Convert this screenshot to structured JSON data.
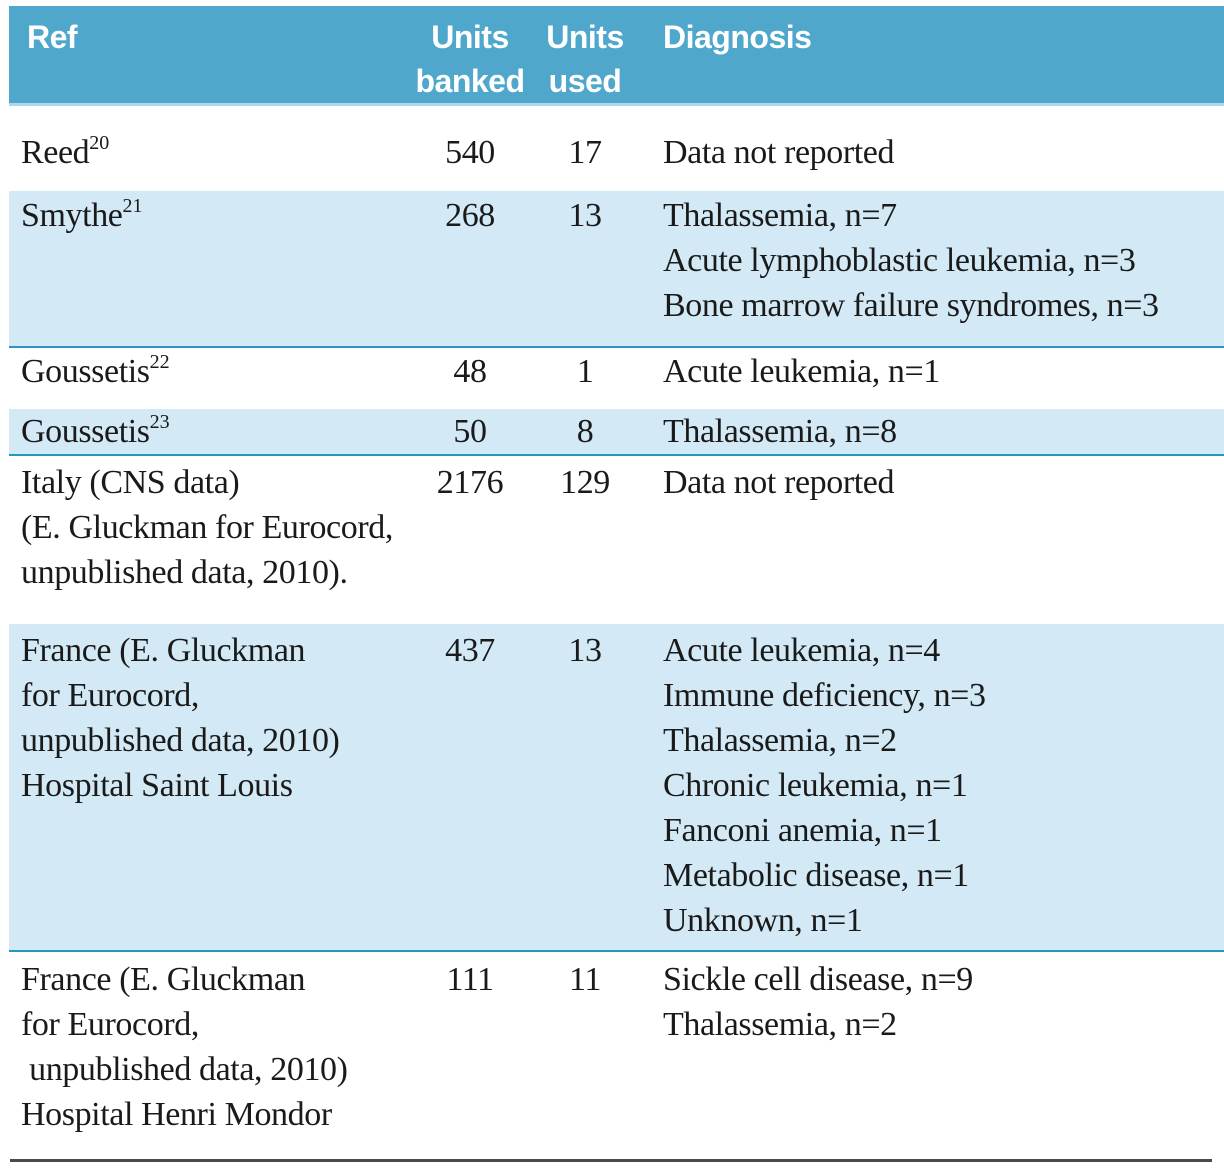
{
  "table": {
    "header": {
      "ref": "Ref",
      "units_banked_line1": "Units",
      "units_banked_line2": "banked",
      "units_used_line1": "Units",
      "units_used_line2": "used",
      "diagnosis": "Diagnosis"
    },
    "rows": [
      {
        "ref_name": "Reed",
        "ref_sup": "20",
        "units_banked": "540",
        "units_used": "17",
        "diagnosis": [
          "Data not reported"
        ]
      },
      {
        "ref_name": "Smythe",
        "ref_sup": "21",
        "units_banked": "268",
        "units_used": "13",
        "diagnosis": [
          "Thalassemia, n=7",
          "Acute lymphoblastic leukemia, n=3",
          "Bone marrow failure syndromes, n=3"
        ]
      },
      {
        "ref_name": "Goussetis",
        "ref_sup": "22",
        "units_banked": "48",
        "units_used": "1",
        "diagnosis": [
          "Acute leukemia, n=1"
        ]
      },
      {
        "ref_name": "Goussetis",
        "ref_sup": "23",
        "units_banked": "50",
        "units_used": "8",
        "diagnosis": [
          "Thalassemia, n=8"
        ]
      },
      {
        "ref_lines": [
          "Italy (CNS data)",
          "(E. Gluckman for Eurocord,",
          "unpublished data, 2010)."
        ],
        "units_banked": "2176",
        "units_used": "129",
        "diagnosis": [
          "Data not reported"
        ]
      },
      {
        "ref_lines": [
          "France (E. Gluckman",
          "for Eurocord,",
          "unpublished data, 2010)",
          "Hospital Saint Louis"
        ],
        "units_banked": "437",
        "units_used": "13",
        "diagnosis": [
          "Acute leukemia, n=4",
          "Immune deficiency, n=3",
          "Thalassemia, n=2",
          "Chronic leukemia, n=1",
          "Fanconi anemia, n=1",
          "Metabolic disease, n=1",
          "Unknown, n=1"
        ]
      },
      {
        "ref_lines": [
          "France (E. Gluckman",
          "for Eurocord,",
          " unpublished data, 2010)",
          "Hospital Henri Mondor"
        ],
        "units_banked": "111",
        "units_used": "11",
        "diagnosis": [
          "Sickle cell disease, n=9",
          "Thalassemia, n=2"
        ]
      }
    ]
  },
  "colors": {
    "header_bg": "#4fa7cb",
    "header_text": "#ffffff",
    "alt_row_bg": "#d3eaf6",
    "alt_row_separator": "#2996be",
    "header_underline": "#aed6e9",
    "body_text": "#1a1a1a",
    "bottom_rule": "#4a4a4a"
  }
}
